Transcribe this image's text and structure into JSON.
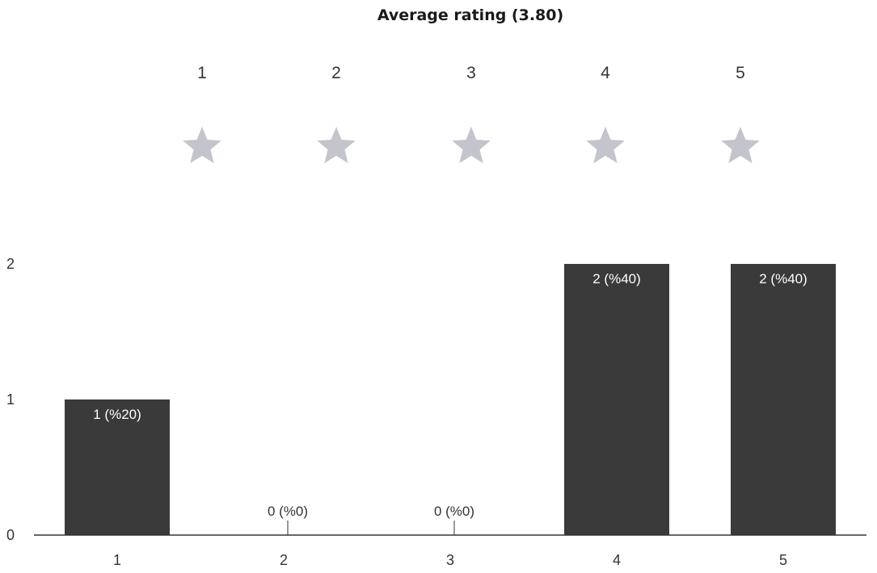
{
  "colors": {
    "bar": "#3a3a3a",
    "star": "#c4c4cc",
    "axis": "#333333",
    "label_inside": "#ffffff",
    "label_outside": "#333333"
  },
  "rating_header": {
    "star_numbers": [
      "1",
      "2",
      "3",
      "4",
      "5"
    ],
    "icon": "star-icon"
  },
  "chart_data": {
    "type": "bar",
    "title": "Average rating (3.80)",
    "categories": [
      "1",
      "2",
      "3",
      "4",
      "5"
    ],
    "values": [
      1,
      0,
      0,
      2,
      2
    ],
    "data_labels": [
      "1 (%20)",
      "0 (%0)",
      "0 (%0)",
      "2 (%40)",
      "2 (%40)"
    ],
    "yticks": [
      "0",
      "1",
      "2"
    ],
    "ylim": [
      0,
      2
    ],
    "xlabel": "",
    "ylabel": "",
    "grid": false,
    "legend": "none"
  }
}
